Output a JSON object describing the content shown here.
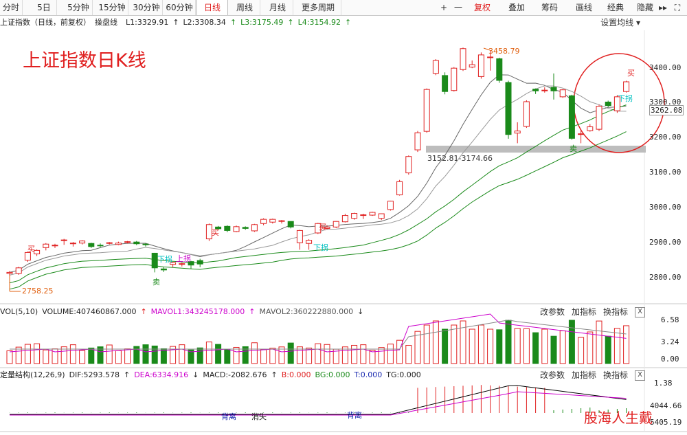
{
  "toolbar": {
    "tabs": [
      "分时",
      "5日",
      "5分钟",
      "15分钟",
      "30分钟",
      "60分钟",
      "日线",
      "周线",
      "月线",
      "更多周期"
    ],
    "active": "日线",
    "right": [
      "+",
      "一",
      "复权",
      "叠加",
      "筹码",
      "画线",
      "经典",
      "隐藏"
    ],
    "right_arrows": "▸▸",
    "expand": "⛶"
  },
  "info": {
    "title": "上证指数（日线，前复权）",
    "op": "操盘线",
    "l1": "L1:3329.91",
    "l2": "L2:3308.34",
    "l3": "L3:3175.49",
    "l4": "L4:3154.92",
    "arrow": "↑",
    "settings": "设置均线"
  },
  "colors": {
    "up": "#e02020",
    "down": "#1a8a1a",
    "ma": "#999999",
    "l3": "#1a8a1a",
    "mavol2": "#cc00cc",
    "dea": "#cc00cc"
  },
  "chart_title": "上证指数日K线",
  "price_axis": [
    "3400.00",
    "3300.00",
    "3262.08",
    "3200.00",
    "3100.00",
    "3000.00",
    "2900.00",
    "2800.00"
  ],
  "annotations": {
    "high": "3458.79",
    "low": "2758.25",
    "zone": "3152.81-3174.66",
    "buy": "买",
    "sell": "卖",
    "down_break": "下拐",
    "up_break": "上拐"
  },
  "chart_data": {
    "type": "candlestick",
    "y_range": [
      2750,
      3470
    ],
    "candles": [
      [
        2812,
        2815,
        2803,
        2819
      ],
      [
        2812,
        2828,
        2808,
        2831
      ],
      [
        2850,
        2872,
        2845,
        2875
      ],
      [
        2868,
        2878,
        2862,
        2881
      ],
      [
        2886,
        2896,
        2878,
        2899
      ],
      [
        2891,
        2893,
        2885,
        2897
      ],
      [
        2906,
        2908,
        2894,
        2911
      ],
      [
        2897,
        2899,
        2889,
        2902
      ],
      [
        2899,
        2905,
        2895,
        2907
      ],
      [
        2898,
        2889,
        2885,
        2900
      ],
      [
        2893,
        2891,
        2887,
        2898
      ],
      [
        2900,
        2900,
        2895,
        2902
      ],
      [
        2895,
        2899,
        2893,
        2903
      ],
      [
        2901,
        2903,
        2898,
        2905
      ],
      [
        2902,
        2897,
        2893,
        2905
      ],
      [
        2896,
        2894,
        2889,
        2899
      ],
      [
        2870,
        2828,
        2815,
        2871
      ],
      [
        2825,
        2822,
        2816,
        2830
      ],
      [
        2838,
        2843,
        2829,
        2845
      ],
      [
        2838,
        2840,
        2832,
        2843
      ],
      [
        2846,
        2836,
        2825,
        2848
      ],
      [
        2849,
        2839,
        2830,
        2854
      ],
      [
        2911,
        2952,
        2905,
        2955
      ],
      [
        2945,
        2940,
        2936,
        2948
      ],
      [
        2947,
        2935,
        2930,
        2950
      ],
      [
        2932,
        2946,
        2930,
        2949
      ],
      [
        2944,
        2941,
        2937,
        2947
      ],
      [
        2934,
        2952,
        2931,
        2954
      ],
      [
        2955,
        2967,
        2950,
        2970
      ],
      [
        2959,
        2967,
        2955,
        2969
      ],
      [
        2962,
        2963,
        2955,
        2965
      ],
      [
        2961,
        2945,
        2941,
        2961
      ],
      [
        2900,
        2935,
        2880,
        2937
      ],
      [
        2898,
        2907,
        2880,
        2910
      ],
      [
        2928,
        2955,
        2925,
        2957
      ],
      [
        2941,
        2945,
        2938,
        2950
      ],
      [
        2945,
        2961,
        2942,
        2962
      ],
      [
        2960,
        2978,
        2958,
        2983
      ],
      [
        2970,
        2984,
        2966,
        2986
      ],
      [
        2978,
        2980,
        2968,
        2983
      ],
      [
        2979,
        2987,
        2977,
        2989
      ],
      [
        2970,
        2983,
        2965,
        2984
      ],
      [
        2995,
        3019,
        2992,
        3020
      ],
      [
        3037,
        3075,
        3035,
        3080
      ],
      [
        3100,
        3147,
        3095,
        3150
      ],
      [
        3166,
        3215,
        3160,
        3220
      ],
      [
        3219,
        3339,
        3215,
        3342
      ],
      [
        3385,
        3422,
        3380,
        3426
      ],
      [
        3379,
        3333,
        3325,
        3388
      ],
      [
        3336,
        3400,
        3333,
        3403
      ],
      [
        3396,
        3456,
        3392,
        3459
      ],
      [
        3403,
        3410,
        3400,
        3422
      ],
      [
        3376,
        3438,
        3370,
        3445
      ],
      [
        3432,
        3432,
        3393,
        3451
      ],
      [
        3427,
        3365,
        3358,
        3430
      ],
      [
        3359,
        3210,
        3198,
        3364
      ],
      [
        3214,
        3220,
        3185,
        3245
      ],
      [
        3233,
        3304,
        3229,
        3308
      ],
      [
        3340,
        3335,
        3326,
        3342
      ],
      [
        3337,
        3337,
        3330,
        3345
      ],
      [
        3345,
        3335,
        3310,
        3385
      ],
      [
        3318,
        3338,
        3315,
        3340
      ],
      [
        3321,
        3199,
        3195,
        3324
      ],
      [
        3212,
        3212,
        3185,
        3225
      ],
      [
        3221,
        3232,
        3218,
        3240
      ],
      [
        3225,
        3291,
        3220,
        3295
      ],
      [
        3303,
        3293,
        3288,
        3307
      ],
      [
        3278,
        3318,
        3272,
        3323
      ],
      [
        3333,
        3361,
        3330,
        3364
      ]
    ],
    "volume_axis": [
      "6.58",
      "3.24",
      "0.00"
    ],
    "macd_axis": [
      "1.38",
      "4044.66",
      "5405.19"
    ]
  },
  "volume": {
    "label": "VOL(5,10)",
    "volume": "VOLUME:407460867.000",
    "mavol1": "MAVOL1:343245178.000",
    "mavol2": "MAVOL2:360222880.000"
  },
  "macd": {
    "label": "定量结构(12,26,9)",
    "dif": "DIF:5293.578",
    "dea": "DEA:6334.916",
    "macd": "MACD:-2082.676",
    "b": "B:0.000",
    "bg": "BG:0.000",
    "t": "T:0.000",
    "tg": "TG:0.000",
    "beili": "背离",
    "xiaoshi": "消失"
  },
  "panel_buttons": [
    "改参数",
    "加指标",
    "换指标"
  ],
  "close": "X",
  "watermark": "股海人生戴"
}
